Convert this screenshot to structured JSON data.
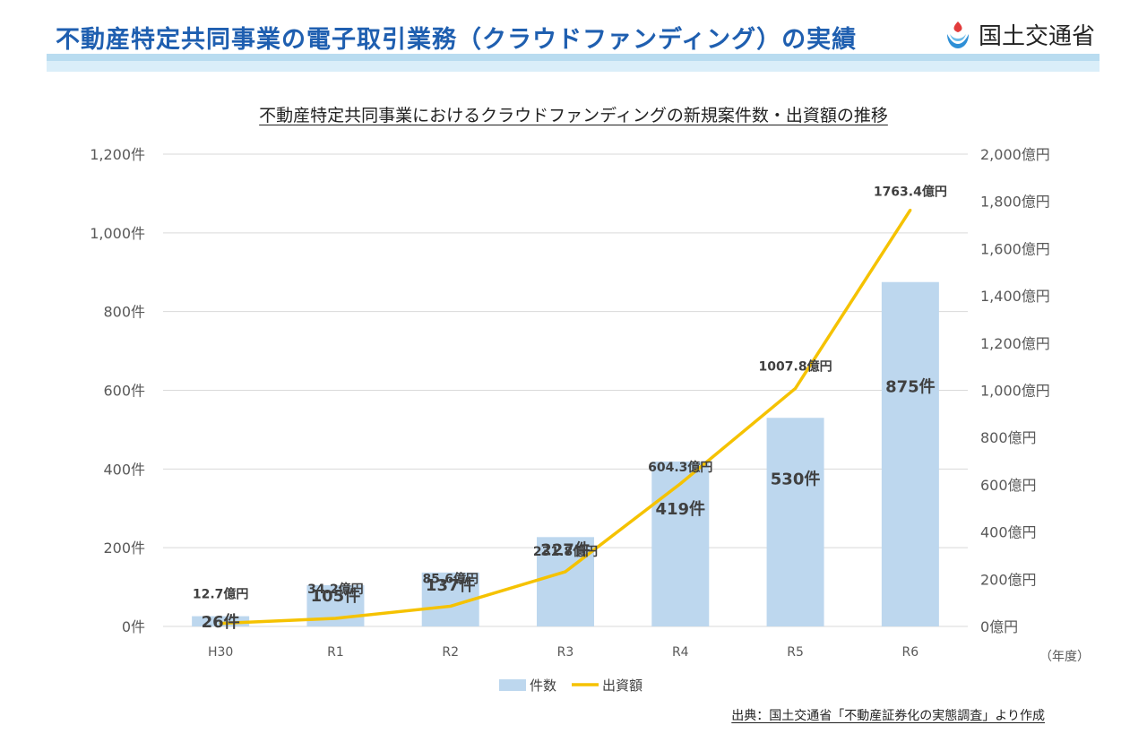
{
  "header": {
    "title": "不動産特定共同事業の電子取引業務（クラウドファンディング）の実績",
    "org_name": "国土交通省"
  },
  "colors": {
    "title": "#1f5fb0",
    "bar": "#bdd7ee",
    "line": "#f5c200",
    "grid": "#d9d9d9"
  },
  "chart_data": {
    "type": "bar",
    "title": "不動産特定共同事業におけるクラウドファンディングの新規案件数・出資額の推移",
    "categories": [
      "H30",
      "R1",
      "R2",
      "R3",
      "R4",
      "R5",
      "R6"
    ],
    "xlabel": "（年度）",
    "series": [
      {
        "name": "件数",
        "type": "bar",
        "axis": "left",
        "values": [
          26,
          105,
          137,
          227,
          419,
          530,
          875
        ],
        "labels": [
          "26件",
          "105件",
          "137件",
          "227件",
          "419件",
          "530件",
          "875件"
        ]
      },
      {
        "name": "出資額",
        "type": "line",
        "axis": "right",
        "values": [
          12.7,
          34.2,
          85.6,
          231.8,
          604.3,
          1007.8,
          1763.4
        ],
        "labels": [
          "12.7億円",
          "34.2億円",
          "85.6億円",
          "231.8億円",
          "604.3億円",
          "1007.8億円",
          "1763.4億円"
        ]
      }
    ],
    "y_left": {
      "min": 0,
      "max": 1200,
      "ticks": [
        "0件",
        "200件",
        "400件",
        "600件",
        "800件",
        "1,000件",
        "1,200件"
      ]
    },
    "y_right": {
      "min": 0,
      "max": 2000,
      "ticks": [
        "0億円",
        "200億円",
        "400億円",
        "600億円",
        "800億円",
        "1,000億円",
        "1,200億円",
        "1,400億円",
        "1,600億円",
        "1,800億円",
        "2,000億円"
      ]
    },
    "grid": true,
    "legend_position": "bottom-center"
  },
  "source": "出典：国土交通省「不動産証券化の実態調査」より作成"
}
